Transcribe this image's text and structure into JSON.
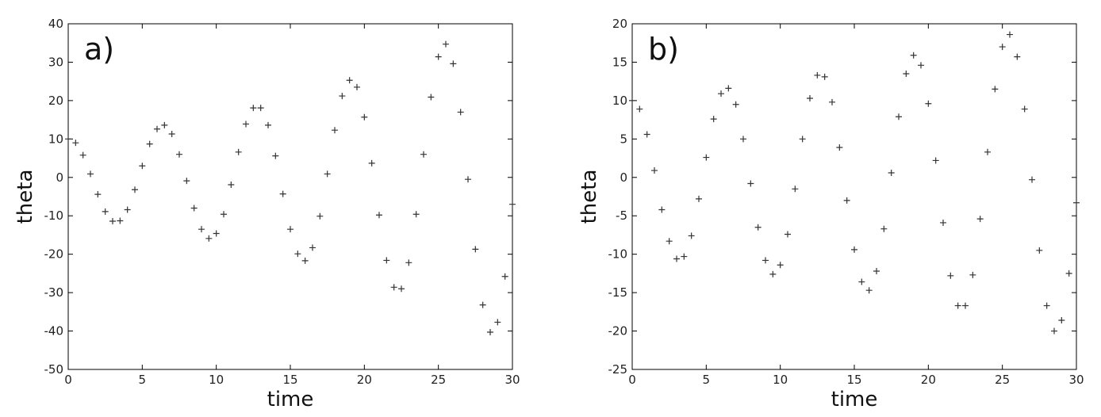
{
  "chart_data": [
    {
      "type": "scatter",
      "annotation": "a)",
      "xlabel": "time",
      "ylabel": "theta",
      "color": "#333333",
      "xlim": [
        0,
        30
      ],
      "ylim": [
        -50,
        40
      ],
      "xticks": [
        0,
        5,
        10,
        15,
        20,
        25,
        30
      ],
      "yticks": [
        -50,
        -40,
        -30,
        -20,
        -10,
        0,
        10,
        20,
        30,
        40
      ],
      "x": [
        0,
        0.5,
        1,
        1.5,
        2,
        2.5,
        3,
        3.5,
        4,
        4.5,
        5,
        5.5,
        6,
        6.5,
        7,
        7.5,
        8,
        8.5,
        9,
        9.5,
        10,
        10.5,
        11,
        11.5,
        12,
        12.5,
        13,
        13.5,
        14,
        14.5,
        15,
        15.5,
        16,
        16.5,
        17,
        17.5,
        18,
        18.5,
        19,
        19.5,
        20,
        20.5,
        21,
        21.5,
        22,
        22.5,
        23,
        23.5,
        24,
        24.5,
        25,
        25.5,
        26,
        26.5,
        27,
        27.5,
        28,
        28.5,
        29,
        29.5,
        30
      ],
      "values": [
        10.0,
        9.0,
        5.8,
        0.9,
        -4.4,
        -8.9,
        -11.4,
        -11.3,
        -8.4,
        -3.2,
        3.0,
        8.7,
        12.6,
        13.6,
        11.3,
        6.0,
        -0.9,
        -8.0,
        -13.5,
        -15.9,
        -14.6,
        -9.6,
        -1.9,
        6.6,
        13.9,
        18.1,
        18.1,
        13.6,
        5.6,
        -4.3,
        -13.5,
        -19.9,
        -21.7,
        -18.3,
        -10.1,
        0.9,
        12.3,
        21.2,
        25.3,
        23.5,
        15.7,
        3.7,
        -9.8,
        -21.6,
        -28.6,
        -29.0,
        -22.2,
        -9.6,
        6.0,
        20.9,
        31.4,
        34.7,
        29.6,
        17.0,
        -0.5,
        -18.7,
        -33.2,
        -40.3,
        -37.7,
        -25.8,
        -7.0
      ]
    },
    {
      "type": "scatter",
      "annotation": "b)",
      "xlabel": "time",
      "ylabel": "theta",
      "color": "#333333",
      "xlim": [
        0,
        30
      ],
      "ylim": [
        -25,
        20
      ],
      "xticks": [
        0,
        5,
        10,
        15,
        20,
        25,
        30
      ],
      "yticks": [
        -25,
        -20,
        -15,
        -10,
        -5,
        0,
        5,
        10,
        15,
        20
      ],
      "x": [
        0,
        0.5,
        1,
        1.5,
        2,
        2.5,
        3,
        3.5,
        4,
        4.5,
        5,
        5.5,
        6,
        6.5,
        7,
        7.5,
        8,
        8.5,
        9,
        9.5,
        10,
        10.5,
        11,
        11.5,
        12,
        12.5,
        13,
        13.5,
        14,
        14.5,
        15,
        15.5,
        16,
        16.5,
        17,
        17.5,
        18,
        18.5,
        19,
        19.5,
        20,
        20.5,
        21,
        21.5,
        22,
        22.5,
        23,
        23.5,
        24,
        24.5,
        25,
        25.5,
        26,
        26.5,
        27,
        27.5,
        28,
        28.5,
        29,
        29.5,
        30
      ],
      "values": [
        10.0,
        8.9,
        5.6,
        0.9,
        -4.2,
        -8.3,
        -10.6,
        -10.3,
        -7.6,
        -2.8,
        2.6,
        7.6,
        10.9,
        11.6,
        9.5,
        5.0,
        -0.8,
        -6.5,
        -10.8,
        -12.6,
        -11.4,
        -7.4,
        -1.5,
        5.0,
        10.3,
        13.3,
        13.1,
        9.8,
        3.9,
        -3.0,
        -9.4,
        -13.6,
        -14.7,
        -12.2,
        -6.7,
        0.6,
        7.9,
        13.5,
        15.9,
        14.6,
        9.6,
        2.2,
        -5.9,
        -12.8,
        -16.7,
        -16.7,
        -12.7,
        -5.4,
        3.3,
        11.5,
        17.0,
        18.6,
        15.7,
        8.9,
        -0.3,
        -9.5,
        -16.7,
        -20.0,
        -18.6,
        -12.5,
        -3.3
      ]
    }
  ]
}
